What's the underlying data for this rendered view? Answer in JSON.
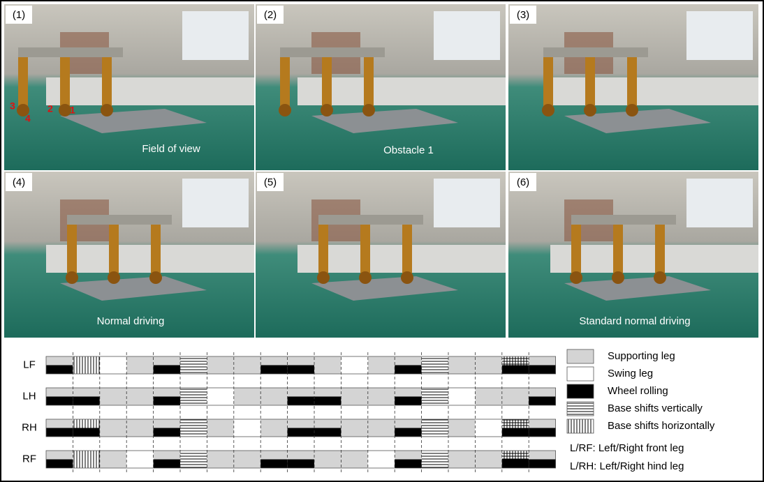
{
  "panels": [
    {
      "label": "(1)",
      "annotations": [
        "Field of view"
      ],
      "leg_numbers": [
        "3",
        "4",
        "2",
        "1"
      ]
    },
    {
      "label": "(2)",
      "annotations": [
        "Obstacle 1"
      ]
    },
    {
      "label": "(3)",
      "annotations": []
    },
    {
      "label": "(4)",
      "annotations": [
        "Normal driving"
      ]
    },
    {
      "label": "(5)",
      "annotations": []
    },
    {
      "label": "(6)",
      "annotations": [
        "Standard normal driving"
      ]
    }
  ],
  "gait": {
    "legend": [
      "Supporting leg",
      "Swing leg",
      "Wheel rolling",
      "Base shifts vertically",
      "Base shifts horizontally"
    ],
    "notes": [
      "L/RF: Left/Right front leg",
      "L/RH: Left/Right hind leg"
    ],
    "rows": [
      {
        "name": "LF",
        "cells": [
          [
            0,
            2
          ],
          [
            4
          ],
          [
            1
          ],
          [
            0
          ],
          [
            0,
            2
          ],
          [
            3
          ],
          [
            0
          ],
          [
            0
          ],
          [
            0,
            2
          ],
          [
            0,
            2
          ],
          [
            0
          ],
          [
            1
          ],
          [
            0
          ],
          [
            0,
            2
          ],
          [
            3
          ],
          [
            0
          ],
          [
            0
          ],
          [
            3,
            4,
            2
          ],
          [
            0,
            2
          ]
        ]
      },
      {
        "name": "LH",
        "cells": [
          [
            0,
            2
          ],
          [
            0,
            2
          ],
          [
            0
          ],
          [
            0
          ],
          [
            0,
            2
          ],
          [
            3
          ],
          [
            1
          ],
          [
            0
          ],
          [
            0
          ],
          [
            0,
            2
          ],
          [
            0,
            2
          ],
          [
            0
          ],
          [
            0
          ],
          [
            0,
            2
          ],
          [
            3
          ],
          [
            1
          ],
          [
            0
          ],
          [
            0
          ],
          [
            0,
            2
          ]
        ]
      },
      {
        "name": "RH",
        "cells": [
          [
            0,
            2
          ],
          [
            4,
            2
          ],
          [
            0
          ],
          [
            0
          ],
          [
            0,
            2
          ],
          [
            3
          ],
          [
            0
          ],
          [
            1
          ],
          [
            0
          ],
          [
            0,
            2
          ],
          [
            0,
            2
          ],
          [
            0
          ],
          [
            0
          ],
          [
            0,
            2
          ],
          [
            3
          ],
          [
            0
          ],
          [
            1
          ],
          [
            3,
            4,
            2
          ],
          [
            0,
            2
          ]
        ]
      },
      {
        "name": "RF",
        "cells": [
          [
            0,
            2
          ],
          [
            4
          ],
          [
            0
          ],
          [
            1
          ],
          [
            0,
            2
          ],
          [
            3
          ],
          [
            0
          ],
          [
            0
          ],
          [
            0,
            2
          ],
          [
            0,
            2
          ],
          [
            0
          ],
          [
            0
          ],
          [
            1
          ],
          [
            0,
            2
          ],
          [
            3
          ],
          [
            0
          ],
          [
            0
          ],
          [
            3,
            4,
            2
          ],
          [
            0,
            2
          ]
        ]
      }
    ]
  }
}
